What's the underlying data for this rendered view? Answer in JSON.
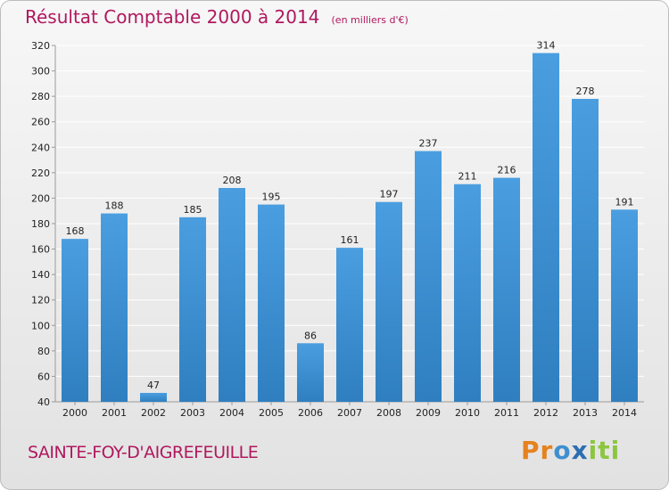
{
  "title": {
    "main": "Résultat Comptable 2000 à 2014",
    "unit": "(en milliers d'€)"
  },
  "commune": "SAINTE-FOY-D'AIGREFEUILLE",
  "brand": {
    "text": "Proxiti",
    "colors": [
      "#e6821e",
      "#3f8fd0",
      "#2c6fb0",
      "#8cc63e"
    ]
  },
  "colors": {
    "bar": "#4a9ee0",
    "bar_dark": "#2f7fc0",
    "grid": "#ffffff",
    "title": "#b0185e"
  },
  "chart_data": {
    "type": "bar",
    "title": "Résultat Comptable 2000 à 2014",
    "subtitle": "(en milliers d'€)",
    "xlabel": "",
    "ylabel": "",
    "categories": [
      "2000",
      "2001",
      "2002",
      "2003",
      "2004",
      "2005",
      "2006",
      "2007",
      "2008",
      "2009",
      "2010",
      "2011",
      "2012",
      "2013",
      "2014"
    ],
    "values": [
      168,
      188,
      47,
      185,
      208,
      195,
      86,
      161,
      197,
      237,
      211,
      216,
      314,
      278,
      191
    ],
    "ylim": [
      40,
      320
    ],
    "yticks": [
      40,
      60,
      80,
      100,
      120,
      140,
      160,
      180,
      200,
      220,
      240,
      260,
      280,
      300,
      320
    ],
    "grid": true,
    "data_labels": true
  }
}
